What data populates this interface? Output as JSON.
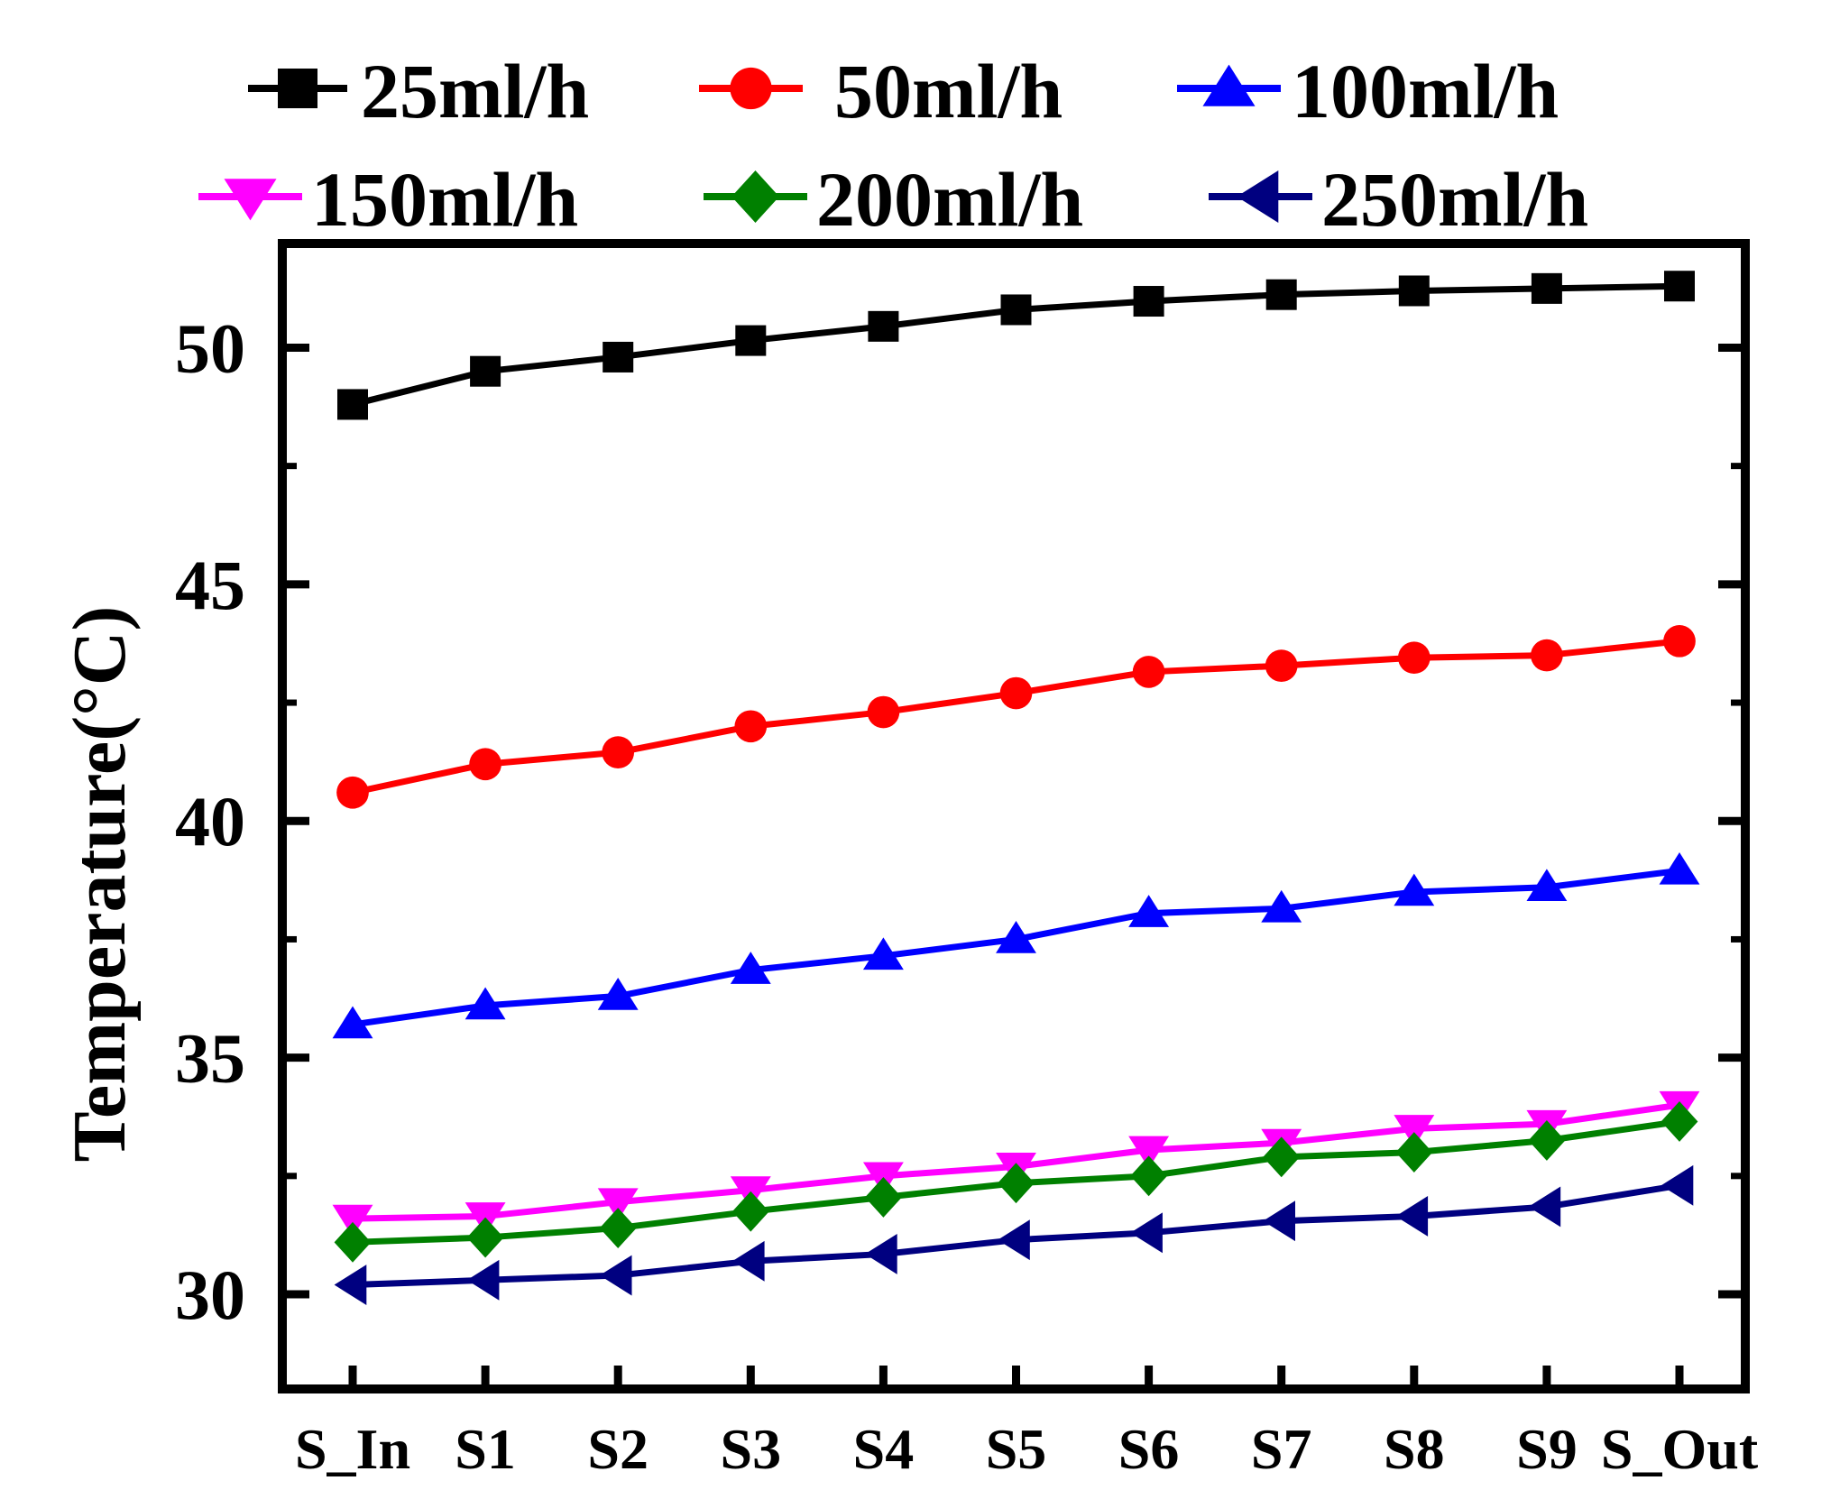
{
  "chart_data": {
    "type": "line",
    "title": "",
    "xlabel": "",
    "ylabel": "Temperature(°C)",
    "categories": [
      "S_In",
      "S1",
      "S2",
      "S3",
      "S4",
      "S5",
      "S6",
      "S7",
      "S8",
      "S9",
      "S_Out"
    ],
    "ylim": [
      28,
      52.2
    ],
    "yticks": [
      "30",
      "35",
      "40",
      "45",
      "50"
    ],
    "grid": false,
    "legend_position": "top",
    "series": [
      {
        "name": "25ml/h",
        "color": "#000000",
        "marker": "square",
        "values": [
          48.8,
          49.5,
          49.8,
          50.15,
          50.45,
          50.8,
          50.98,
          51.12,
          51.2,
          51.25,
          51.3
        ]
      },
      {
        "name": "50ml/h",
        "color": "#ff0000",
        "marker": "circle",
        "values": [
          40.6,
          41.2,
          41.45,
          42.0,
          42.3,
          42.7,
          43.15,
          43.28,
          43.45,
          43.5,
          43.8
        ]
      },
      {
        "name": "100ml/h",
        "color": "#0000ff",
        "marker": "triangle-up",
        "values": [
          35.7,
          36.1,
          36.3,
          36.85,
          37.15,
          37.5,
          38.05,
          38.15,
          38.5,
          38.6,
          38.95
        ]
      },
      {
        "name": "150ml/h",
        "color": "#ff00ff",
        "marker": "triangle-down",
        "values": [
          31.6,
          31.65,
          31.95,
          32.2,
          32.5,
          32.7,
          33.05,
          33.2,
          33.5,
          33.6,
          34.0
        ]
      },
      {
        "name": "200ml/h",
        "color": "#008000",
        "marker": "diamond",
        "values": [
          31.1,
          31.2,
          31.4,
          31.75,
          32.05,
          32.35,
          32.5,
          32.9,
          33.0,
          33.25,
          33.65
        ]
      },
      {
        "name": "250ml/h",
        "color": "#000080",
        "marker": "triangle-left",
        "values": [
          30.2,
          30.3,
          30.4,
          30.7,
          30.85,
          31.15,
          31.3,
          31.55,
          31.65,
          31.85,
          32.3
        ]
      }
    ]
  }
}
